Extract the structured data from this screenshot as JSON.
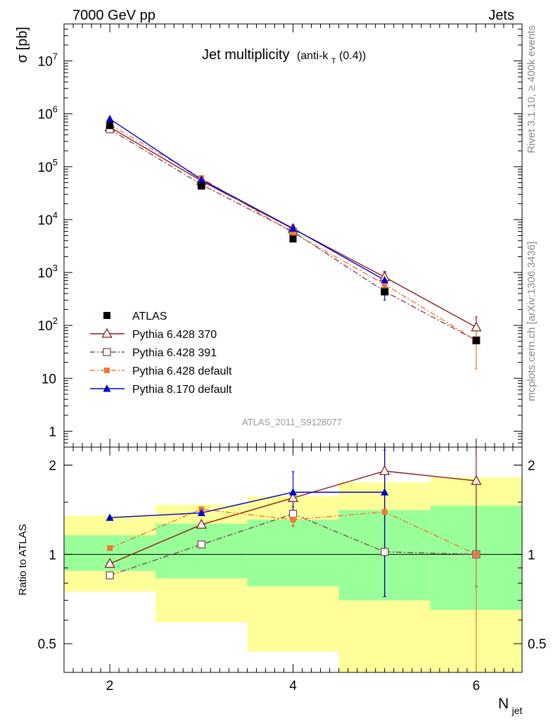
{
  "header": {
    "energy_label": "7000 GeV pp",
    "process_label": "Jets"
  },
  "side_labels": {
    "rivet": "Rivet 3.1.10, ≥ 400k events",
    "source": "mcplots.cern.ch [arXiv:1306.3436]"
  },
  "chart_data": [
    {
      "type": "scatter",
      "panel": "main",
      "title": "Jet multiplicity",
      "title_suffix": "(anti-k",
      "title_sub": "T",
      "title_tail": "(0.4))",
      "ylabel": "σ [pb]",
      "xlabel": "N",
      "xlabel_sub": "jet",
      "xlim": [
        1.5,
        6.5
      ],
      "ylim": [
        0.5,
        50000000
      ],
      "yscale": "log",
      "y_ticks": [
        1,
        10,
        100,
        1000,
        10000,
        100000,
        1000000,
        10000000
      ],
      "y_tick_labels": [
        {
          "base": "1",
          "exp": ""
        },
        {
          "base": "10",
          "exp": ""
        },
        {
          "base": "10",
          "exp": "2"
        },
        {
          "base": "10",
          "exp": "3"
        },
        {
          "base": "10",
          "exp": "4"
        },
        {
          "base": "10",
          "exp": "5"
        },
        {
          "base": "10",
          "exp": "6"
        },
        {
          "base": "10",
          "exp": "7"
        }
      ],
      "analysis_label": "ATLAS_2011_S9128077",
      "legend_position": "bottom-left",
      "series": [
        {
          "name": "ATLAS",
          "color": "#000000",
          "marker": "square-filled",
          "line": "none",
          "x": [
            2,
            3,
            4,
            5,
            6
          ],
          "y": [
            600000,
            43000,
            4300,
            430,
            52
          ]
        },
        {
          "name": "Pythia 6.428 370",
          "color": "#8b1a1a",
          "marker": "triangle-open",
          "line": "solid",
          "x": [
            2,
            3,
            4,
            5,
            6
          ],
          "y": [
            560000,
            54000,
            6700,
            820,
            92
          ],
          "err_hi": [
            null,
            null,
            null,
            1050,
            145
          ],
          "err_lo": [
            null,
            null,
            null,
            560,
            50
          ]
        },
        {
          "name": "Pythia 6.428 391",
          "color": "#7a4a5a",
          "marker": "square-open",
          "line": "dashdot",
          "x": [
            2,
            3,
            4,
            5,
            6
          ],
          "y": [
            510000,
            46000,
            5900,
            440,
            52
          ]
        },
        {
          "name": "Pythia 6.428 default",
          "color": "#ee7733",
          "marker": "square-small-filled",
          "line": "dashdot",
          "x": [
            2,
            3,
            4,
            5,
            6
          ],
          "y": [
            630000,
            61000,
            5600,
            600,
            52
          ],
          "err_hi": [
            null,
            null,
            null,
            null,
            90
          ],
          "err_lo": [
            null,
            null,
            null,
            null,
            15
          ]
        },
        {
          "name": "Pythia 8.170 default",
          "color": "#0000cc",
          "marker": "triangle-filled",
          "line": "solid",
          "x": [
            2,
            3,
            4,
            5
          ],
          "y": [
            800000,
            57000,
            6800,
            720
          ],
          "err_hi": [
            null,
            null,
            8000,
            1000
          ],
          "err_lo": [
            null,
            null,
            5500,
            300
          ]
        }
      ]
    },
    {
      "type": "scatter",
      "panel": "ratio",
      "ylabel": "Ratio to ATLAS",
      "xlim": [
        1.5,
        6.5
      ],
      "ylim": [
        0.4,
        2.3
      ],
      "yscale": "log",
      "y_ticks": [
        0.5,
        1,
        2
      ],
      "y_tick_labels": [
        "0.5",
        "1",
        "2"
      ],
      "x_ticks": [
        2,
        4,
        6
      ],
      "x_tick_labels": [
        "2",
        "4",
        "6"
      ],
      "uncertainty_bands": [
        {
          "x0": 1.5,
          "x1": 2.5,
          "stat_lo": 0.88,
          "stat_hi": 1.16,
          "tot_lo": 0.75,
          "tot_hi": 1.35
        },
        {
          "x0": 2.5,
          "x1": 3.5,
          "stat_lo": 0.83,
          "stat_hi": 1.27,
          "tot_lo": 0.59,
          "tot_hi": 1.47
        },
        {
          "x0": 3.5,
          "x1": 4.5,
          "stat_lo": 0.78,
          "stat_hi": 1.31,
          "tot_lo": 0.47,
          "tot_hi": 1.57
        },
        {
          "x0": 4.5,
          "x1": 5.5,
          "stat_lo": 0.7,
          "stat_hi": 1.41,
          "tot_lo": 0.35,
          "tot_hi": 1.75
        },
        {
          "x0": 5.5,
          "x1": 6.5,
          "stat_lo": 0.65,
          "stat_hi": 1.46,
          "tot_lo": 0.35,
          "tot_hi": 1.82
        }
      ],
      "series": [
        {
          "name": "Pythia 6.428 370",
          "color": "#8b1a1a",
          "marker": "triangle-open",
          "line": "solid",
          "x": [
            2,
            3,
            4,
            5,
            6
          ],
          "y": [
            0.93,
            1.26,
            1.55,
            1.91,
            1.77
          ],
          "err_hi": [
            null,
            null,
            null,
            2.25,
            2.3
          ],
          "err_lo": [
            null,
            null,
            null,
            0.72,
            0.78
          ]
        },
        {
          "name": "Pythia 6.428 391",
          "color": "#7a4a5a",
          "marker": "square-open",
          "line": "dashdot",
          "x": [
            2,
            3,
            4,
            5,
            6
          ],
          "y": [
            0.85,
            1.08,
            1.37,
            1.02,
            1.0
          ],
          "err_hi": [
            null,
            null,
            1.45,
            null,
            null
          ],
          "err_lo": [
            null,
            null,
            1.25,
            null,
            null
          ]
        },
        {
          "name": "Pythia 6.428 default",
          "color": "#ee7733",
          "marker": "square-small-filled",
          "line": "dashdot",
          "x": [
            2,
            3,
            4,
            5,
            6
          ],
          "y": [
            1.05,
            1.42,
            1.31,
            1.39,
            1.0
          ],
          "err_hi": [
            null,
            null,
            1.37,
            null,
            1.02
          ],
          "err_lo": [
            null,
            null,
            1.24,
            null,
            0.35
          ]
        },
        {
          "name": "Pythia 8.170 default",
          "color": "#0000cc",
          "marker": "triangle-filled",
          "line": "solid",
          "x": [
            2,
            3,
            4,
            5
          ],
          "y": [
            1.33,
            1.38,
            1.62,
            1.62
          ],
          "err_hi": [
            null,
            null,
            1.9,
            2.3
          ],
          "err_lo": [
            null,
            null,
            1.35,
            0.72
          ]
        }
      ]
    }
  ],
  "colors": {
    "stat_band": "#99ff99",
    "total_band": "#ffff99"
  }
}
